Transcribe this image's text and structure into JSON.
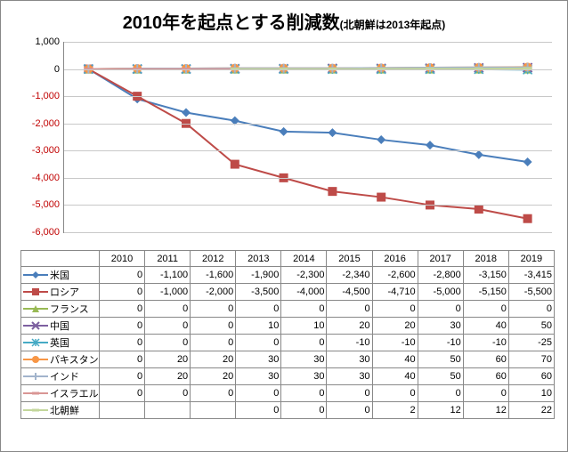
{
  "title_main": "2010年を起点とする削減数",
  "title_sub": "(北朝鮮は2013年起点)",
  "chart": {
    "type": "line",
    "years": [
      2010,
      2011,
      2012,
      2013,
      2014,
      2015,
      2016,
      2017,
      2018,
      2019
    ],
    "ylim": [
      -6000,
      1000
    ],
    "ytick_step": 1000,
    "yticks": [
      1000,
      0,
      -1000,
      -2000,
      -3000,
      -4000,
      -5000,
      -6000
    ],
    "grid_color": "#c8c8c8",
    "axis_color": "#888888",
    "background_color": "#ffffff",
    "label_fontsize": 11,
    "line_width": 2,
    "marker_size": 5,
    "series": [
      {
        "label": "米国",
        "color": "#4a7ebb",
        "marker": "diamond",
        "values": [
          0,
          -1100,
          -1600,
          -1900,
          -2300,
          -2340,
          -2600,
          -2800,
          -3150,
          -3415
        ]
      },
      {
        "label": "ロシア",
        "color": "#be4b48",
        "marker": "square",
        "values": [
          0,
          -1000,
          -2000,
          -3500,
          -4000,
          -4500,
          -4710,
          -5000,
          -5150,
          -5500
        ]
      },
      {
        "label": "フランス",
        "color": "#98b954",
        "marker": "triangle",
        "values": [
          0,
          0,
          0,
          0,
          0,
          0,
          0,
          0,
          0,
          0
        ]
      },
      {
        "label": "中国",
        "color": "#7d60a0",
        "marker": "x",
        "values": [
          0,
          0,
          0,
          10,
          10,
          20,
          20,
          30,
          40,
          50
        ]
      },
      {
        "label": "英国",
        "color": "#46aac5",
        "marker": "asterisk",
        "values": [
          0,
          0,
          0,
          0,
          0,
          -10,
          -10,
          -10,
          -10,
          -25
        ]
      },
      {
        "label": "パキスタン",
        "color": "#f79646",
        "marker": "circle",
        "values": [
          0,
          20,
          20,
          30,
          30,
          30,
          40,
          50,
          60,
          70
        ]
      },
      {
        "label": "インド",
        "color": "#a2b4cc",
        "marker": "plus",
        "values": [
          0,
          20,
          20,
          30,
          30,
          30,
          40,
          50,
          60,
          60
        ]
      },
      {
        "label": "イスラエル",
        "color": "#d99694",
        "marker": "dash",
        "values": [
          0,
          0,
          0,
          0,
          0,
          0,
          0,
          0,
          0,
          10
        ]
      },
      {
        "label": "北朝鮮",
        "color": "#c3d69b",
        "marker": "dash",
        "values": [
          null,
          null,
          null,
          0,
          0,
          0,
          2,
          12,
          12,
          22
        ]
      }
    ]
  }
}
